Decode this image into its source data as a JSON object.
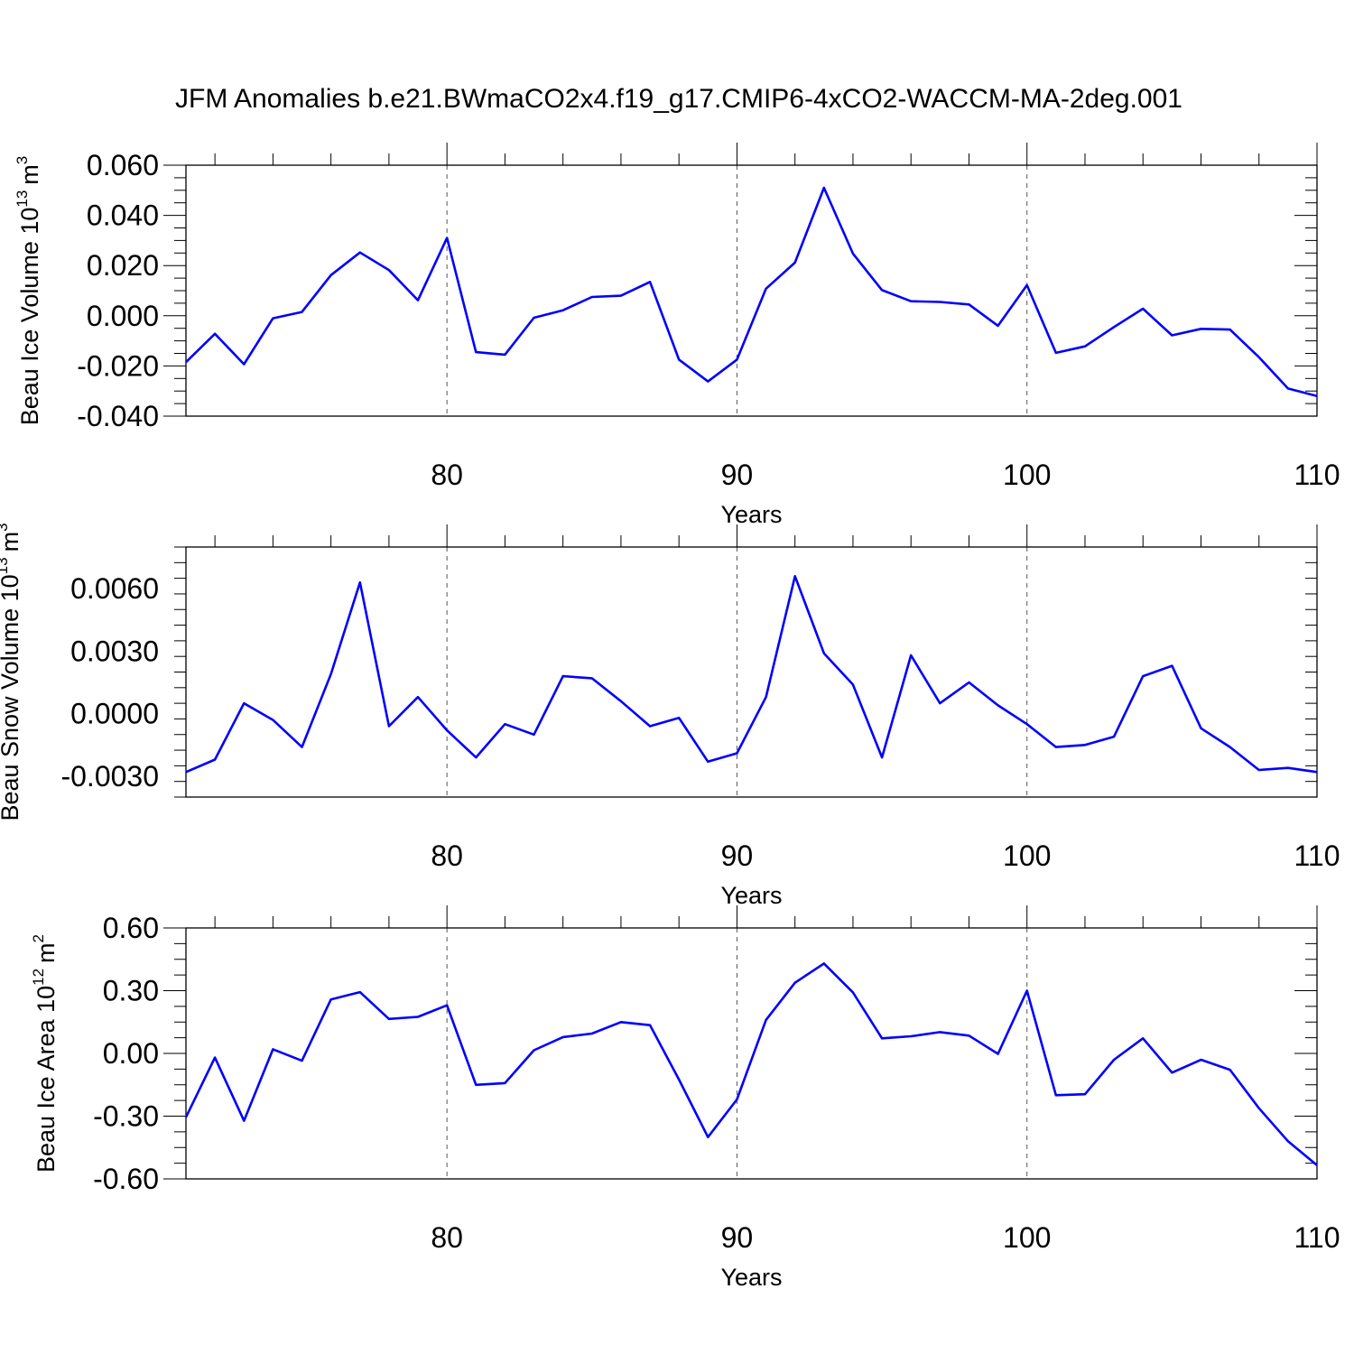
{
  "chart_data": [
    {
      "type": "line",
      "title": "JFM Anomalies b.e21.BWmaCO2x4.f19_g17.CMIP6-4xCO2-WACCM-MA-2deg.001",
      "xlabel": "Years",
      "ylabel": "Beau Ice Volume 10",
      "ylabel_exp": "13",
      "ylabel_unit": "m",
      "ylabel_unit_exp": "3",
      "xlim": [
        71,
        110
      ],
      "ylim": [
        -0.04,
        0.06
      ],
      "xticks": [
        "80",
        "90",
        "100",
        "110"
      ],
      "yticks": [
        "0.060",
        "0.040",
        "0.020",
        "0.000",
        "-0.020",
        "-0.040"
      ],
      "ytick_values": [
        0.06,
        0.04,
        0.02,
        0.0,
        -0.02,
        -0.04
      ],
      "grid": "vertical dashed at 80, 90, 100",
      "color": "#0000ff",
      "x": [
        71,
        72,
        73,
        74,
        75,
        76,
        77,
        78,
        79,
        80,
        81,
        82,
        83,
        84,
        85,
        86,
        87,
        88,
        89,
        90,
        91,
        92,
        93,
        94,
        95,
        96,
        97,
        98,
        99,
        100,
        101,
        102,
        103,
        104,
        105,
        106,
        107,
        108,
        109,
        110
      ],
      "values": [
        -0.0185,
        -0.0072,
        -0.0193,
        -0.001,
        0.0015,
        0.0162,
        0.0252,
        0.0182,
        0.0062,
        0.031,
        -0.0145,
        -0.0155,
        -0.0008,
        0.0022,
        0.0075,
        0.008,
        0.0135,
        -0.0175,
        -0.0262,
        -0.0175,
        0.0108,
        0.0212,
        0.051,
        0.0248,
        0.0102,
        0.0058,
        0.0055,
        0.0045,
        -0.004,
        0.0122,
        -0.0148,
        -0.0122,
        -0.0045,
        0.0028,
        -0.0078,
        -0.0052,
        -0.0055,
        -0.0165,
        -0.029,
        -0.032
      ]
    },
    {
      "type": "line",
      "xlabel": "Years",
      "ylabel": "Beau Snow Volume 10",
      "ylabel_exp": "13",
      "ylabel_unit": "m",
      "ylabel_unit_exp": "3",
      "xlim": [
        71,
        110
      ],
      "ylim": [
        -0.004,
        0.008
      ],
      "xticks": [
        "80",
        "90",
        "100",
        "110"
      ],
      "yticks": [
        "0.0060",
        "0.0030",
        "0.0000",
        "-0.0030"
      ],
      "ytick_values": [
        0.006,
        0.003,
        0.0,
        -0.003
      ],
      "grid": "vertical dashed at 80, 90, 100",
      "color": "#0000ff",
      "x": [
        71,
        72,
        73,
        74,
        75,
        76,
        77,
        78,
        79,
        80,
        81,
        82,
        83,
        84,
        85,
        86,
        87,
        88,
        89,
        90,
        91,
        92,
        93,
        94,
        95,
        96,
        97,
        98,
        99,
        100,
        101,
        102,
        103,
        104,
        105,
        106,
        107,
        108,
        109,
        110
      ],
      "values": [
        -0.0028,
        -0.0022,
        0.0005,
        -0.0003,
        -0.0016,
        0.0019,
        0.0063,
        -0.0006,
        0.0008,
        -0.0008,
        -0.0021,
        -0.0005,
        -0.001,
        0.0018,
        0.0017,
        0.0006,
        -0.0006,
        -0.0002,
        -0.0023,
        -0.0019,
        0.0008,
        0.0066,
        0.0029,
        0.0014,
        -0.0021,
        0.0028,
        0.0005,
        0.0015,
        0.0004,
        -0.0005,
        -0.0016,
        -0.0015,
        -0.0011,
        0.0018,
        0.0023,
        -0.0007,
        -0.0016,
        -0.0027,
        -0.0026,
        -0.0028
      ]
    },
    {
      "type": "line",
      "xlabel": "Years",
      "ylabel": "Beau Ice Area 10",
      "ylabel_exp": "12",
      "ylabel_unit": "m",
      "ylabel_unit_exp": "2",
      "xlim": [
        71,
        110
      ],
      "ylim": [
        -0.6,
        0.6
      ],
      "xticks": [
        "80",
        "90",
        "100",
        "110"
      ],
      "yticks": [
        "0.60",
        "0.30",
        "0.00",
        "-0.30",
        "-0.60"
      ],
      "ytick_values": [
        0.6,
        0.3,
        0.0,
        -0.3,
        -0.6
      ],
      "grid": "vertical dashed at 80, 90, 100",
      "color": "#0000ff",
      "x": [
        71,
        72,
        73,
        74,
        75,
        76,
        77,
        78,
        79,
        80,
        81,
        82,
        83,
        84,
        85,
        86,
        87,
        88,
        89,
        90,
        91,
        92,
        93,
        94,
        95,
        96,
        97,
        98,
        99,
        100,
        101,
        102,
        103,
        104,
        105,
        106,
        107,
        108,
        109,
        110
      ],
      "values": [
        -0.305,
        -0.02,
        -0.322,
        0.02,
        -0.035,
        0.258,
        0.293,
        0.165,
        0.175,
        0.23,
        -0.15,
        -0.142,
        0.015,
        0.078,
        0.095,
        0.15,
        0.135,
        -0.125,
        -0.4,
        -0.22,
        0.16,
        0.338,
        0.43,
        0.292,
        0.072,
        0.082,
        0.102,
        0.085,
        -0.002,
        0.3,
        -0.2,
        -0.195,
        -0.03,
        0.072,
        -0.092,
        -0.03,
        -0.078,
        -0.262,
        -0.42,
        -0.535
      ]
    }
  ]
}
